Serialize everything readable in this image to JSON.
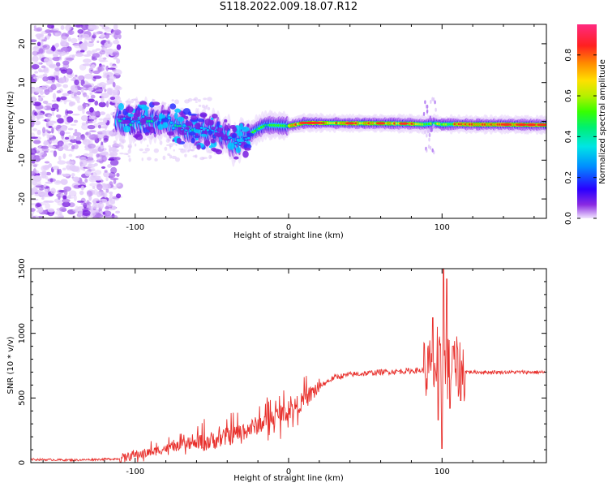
{
  "title": "S118.2022.009.18.07.R12",
  "colors": {
    "snr_line": "#e8302c",
    "colormap": [
      "#ffffff",
      "#e4cdfb",
      "#8a2be2",
      "#4b1de6",
      "#1d55ff",
      "#00c8ff",
      "#00e88a",
      "#36ff00",
      "#b4f000",
      "#ffe000",
      "#ff8a00",
      "#ff2020",
      "#ff2a80"
    ]
  },
  "chart_data": [
    {
      "type": "heatmap",
      "xlabel": "Height of straight line (km)",
      "ylabel": "Frequency (Hz)",
      "xlim": [
        -168,
        168
      ],
      "ylim": [
        -25,
        25
      ],
      "x_ticks": [
        -100,
        0,
        100
      ],
      "y_ticks": [
        -20,
        -10,
        0,
        10,
        20
      ],
      "colorbar": {
        "label": "Normalized spectral amplitude",
        "range": [
          0.0,
          0.95
        ],
        "ticks": [
          "0.0",
          "0.2",
          "0.4",
          "0.6",
          "0.8"
        ]
      },
      "ridge_center_hz": {
        "x": [
          -110,
          -100,
          -90,
          -80,
          -70,
          -60,
          -50,
          -40,
          -35,
          -30,
          -20,
          -15,
          -10,
          0,
          10,
          20,
          40,
          60,
          80,
          88,
          95,
          100,
          110,
          120,
          140,
          160,
          168
        ],
        "y": [
          0.2,
          0.0,
          0.3,
          0.2,
          -1.5,
          -2.2,
          -2.5,
          -4.5,
          -5.5,
          -4.5,
          -2.0,
          -1.0,
          -1.0,
          -1.2,
          -0.4,
          -0.4,
          -0.5,
          -0.5,
          -0.6,
          -0.8,
          -0.5,
          -0.8,
          -0.7,
          -0.8,
          -0.8,
          -0.9,
          -0.9
        ]
      },
      "noise_region_km": [
        -168,
        -110
      ]
    },
    {
      "type": "line",
      "xlabel": "Height of straight line (km)",
      "ylabel": "SNR (10 * v/v)",
      "xlim": [
        -168,
        168
      ],
      "ylim": [
        0,
        1500
      ],
      "x_ticks": [
        -100,
        0,
        100
      ],
      "y_ticks": [
        0,
        500,
        1000,
        1500
      ],
      "trend": {
        "x": [
          -168,
          -140,
          -110,
          -100,
          -90,
          -80,
          -70,
          -60,
          -50,
          -40,
          -30,
          -20,
          -10,
          0,
          10,
          20,
          30,
          40,
          50,
          60,
          70,
          80,
          90,
          95,
          100,
          105,
          110,
          115,
          120,
          130,
          140,
          150,
          160,
          168
        ],
        "y": [
          25,
          20,
          30,
          60,
          80,
          110,
          130,
          150,
          170,
          200,
          240,
          290,
          350,
          400,
          480,
          590,
          660,
          680,
          690,
          700,
          705,
          710,
          715,
          720,
          730,
          725,
          715,
          705,
          700,
          700,
          700,
          700,
          700,
          698
        ]
      },
      "spikes": [
        {
          "x": 94,
          "y": 1120
        },
        {
          "x": 97,
          "y": 1050
        },
        {
          "x": 100,
          "y": 110
        },
        {
          "x": 101,
          "y": 1500
        },
        {
          "x": 103,
          "y": 1420
        },
        {
          "x": 97.5,
          "y": 330
        },
        {
          "x": 105,
          "y": 420
        },
        {
          "x": 107,
          "y": 900
        },
        {
          "x": 112,
          "y": 480
        }
      ]
    }
  ]
}
